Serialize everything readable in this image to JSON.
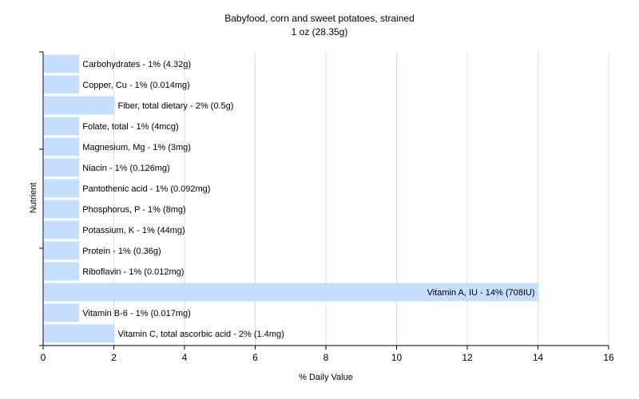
{
  "chart_data": {
    "type": "bar",
    "orientation": "horizontal",
    "title": "Babyfood, corn and sweet potatoes, strained",
    "subtitle": "1 oz (28.35g)",
    "xlabel": "% Daily Value",
    "ylabel": "Nutrient",
    "xlim": [
      0,
      16
    ],
    "xticks": [
      0,
      2,
      4,
      6,
      8,
      10,
      12,
      14,
      16
    ],
    "grid": true,
    "bar_color": "#c6deff",
    "categories": [
      "Carbohydrates",
      "Copper, Cu",
      "Fiber, total dietary",
      "Folate, total",
      "Magnesium, Mg",
      "Niacin",
      "Pantothenic acid",
      "Phosphorus, P",
      "Potassium, K",
      "Protein",
      "Riboflavin",
      "Vitamin A, IU",
      "Vitamin B-6",
      "Vitamin C, total ascorbic acid"
    ],
    "values": [
      1,
      1,
      2,
      1,
      1,
      1,
      1,
      1,
      1,
      1,
      1,
      14,
      1,
      2
    ],
    "labels": [
      "Carbohydrates - 1% (4.32g)",
      "Copper, Cu - 1% (0.014mg)",
      "Fiber, total dietary - 2% (0.5g)",
      "Folate, total - 1% (4mcg)",
      "Magnesium, Mg - 1% (3mg)",
      "Niacin - 1% (0.126mg)",
      "Pantothenic acid - 1% (0.092mg)",
      "Phosphorus, P - 1% (8mg)",
      "Potassium, K - 1% (44mg)",
      "Protein - 1% (0.36g)",
      "Riboflavin - 1% (0.012mg)",
      "Vitamin A, IU - 14% (708IU)",
      "Vitamin B-6 - 1% (0.017mg)",
      "Vitamin C, total ascorbic acid - 2% (1.4mg)"
    ]
  }
}
